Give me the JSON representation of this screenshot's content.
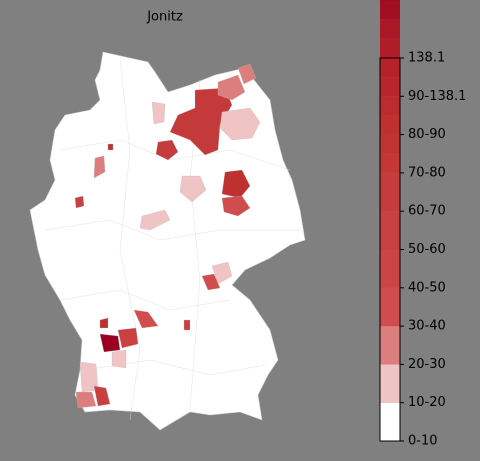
{
  "title": "Jonitz",
  "colorbar": {
    "ticks": [
      "0-10",
      "10-20",
      "20-30",
      "30-40",
      "40-50",
      "50-60",
      "60-70",
      "70-80",
      "80-90",
      "90-138.1",
      "138.1"
    ],
    "colors": [
      "#ffffff",
      "#f0c4c4",
      "#dd7e7e",
      "#d14c4c",
      "#cc4545",
      "#c94040",
      "#c63b3b",
      "#c33737",
      "#c13333",
      "#bf3030",
      "#bc2c2e",
      "#b8262b",
      "#b52229",
      "#b01d27",
      "#aa1725",
      "#a30f22",
      "#9b0020"
    ]
  }
}
